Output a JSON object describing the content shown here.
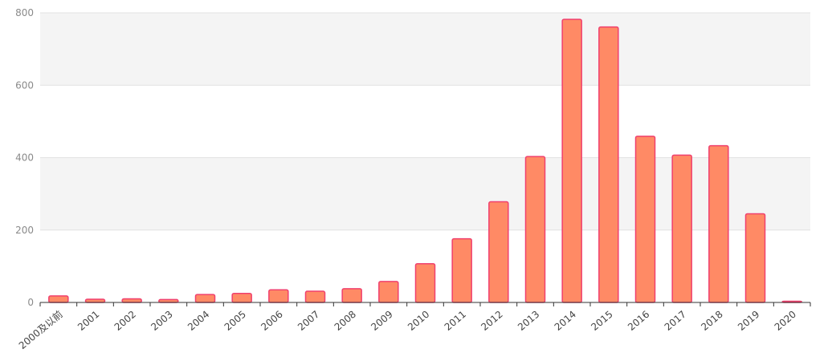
{
  "chart_data": {
    "type": "bar",
    "title": "",
    "xlabel": "",
    "ylabel": "",
    "categories": [
      "2000及以前",
      "2001",
      "2002",
      "2003",
      "2004",
      "2005",
      "2006",
      "2007",
      "2008",
      "2009",
      "2010",
      "2011",
      "2012",
      "2013",
      "2014",
      "2015",
      "2016",
      "2017",
      "2018",
      "2019",
      "2020"
    ],
    "values": [
      18,
      9,
      10,
      8,
      22,
      25,
      35,
      31,
      38,
      58,
      107,
      176,
      278,
      403,
      782,
      761,
      459,
      407,
      433,
      245,
      2
    ],
    "ylim": [
      0,
      800
    ],
    "yticks": [
      0,
      200,
      400,
      600,
      800
    ],
    "grid": true,
    "colors": {
      "bar_fill": "#ff8a65",
      "bar_stroke": "#f0406e",
      "band": "#f4f4f4",
      "gridline": "#e2e2e2",
      "axis": "#333333"
    }
  }
}
